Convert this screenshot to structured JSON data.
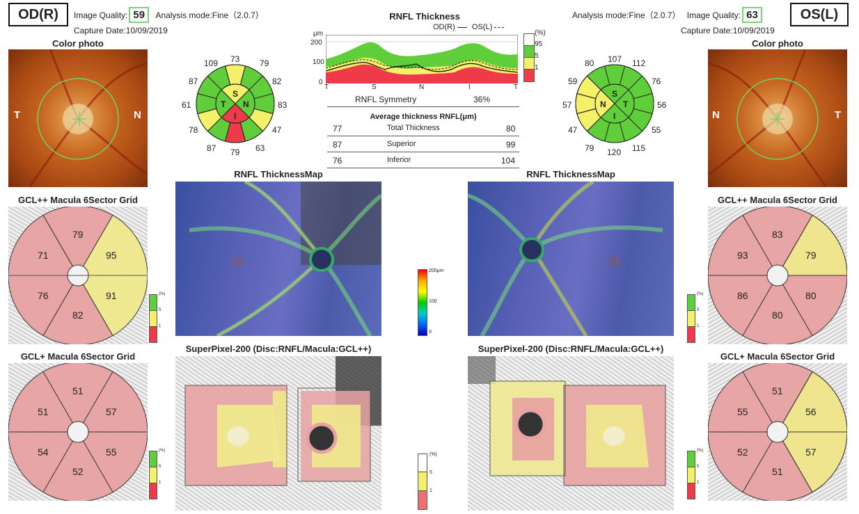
{
  "od": {
    "eye_label": "OD(R)",
    "quality_label": "Image Quality:",
    "quality": "59",
    "mode": "Analysis mode:Fine（2.0.7）",
    "capture": "Capture Date:10/09/2019",
    "photo_title": "Color photo",
    "photo_t": "T",
    "photo_n": "N",
    "clock": {
      "top_l": "109",
      "top": "73",
      "top_r": "79",
      "ul": "87",
      "ur": "82",
      "l": "61",
      "r": "83",
      "ll": "78",
      "lr": "47",
      "bot_l": "87",
      "bot": "79",
      "bot_r": "63",
      "S": "S",
      "T": "T",
      "N": "N",
      "I": "I"
    },
    "gclpp_title": "GCL++ Macula 6Sector Grid",
    "gclpp": [
      "79",
      "95",
      "91",
      "82",
      "76",
      "71"
    ],
    "gclp_title": "GCL+ Macula 6Sector Grid",
    "gclp": [
      "51",
      "57",
      "55",
      "52",
      "54",
      "51"
    ],
    "map_title": "RNFL ThicknessMap",
    "spx_title": "SuperPixel-200 (Disc:RNFL/Macula:GCL++)"
  },
  "os": {
    "eye_label": "OS(L)",
    "quality_label": "Image Quality:",
    "quality": "63",
    "mode": "Analysis mode:Fine（2.0.7）",
    "capture": "Capture Date:10/09/2019",
    "photo_title": "Color photo",
    "photo_n": "N",
    "photo_t": "T",
    "clock": {
      "top_l": "80",
      "top": "107",
      "top_r": "112",
      "ul": "59",
      "ur": "76",
      "l": "57",
      "r": "56",
      "ll": "47",
      "lr": "55",
      "bot_l": "79",
      "bot": "120",
      "bot_r": "115",
      "S": "S",
      "T": "T",
      "N": "N",
      "I": "I"
    },
    "gclpp_title": "GCL++ Macula 6Sector Grid",
    "gclpp": [
      "83",
      "79",
      "80",
      "80",
      "86",
      "93"
    ],
    "gclp_title": "GCL+ Macula 6Sector Grid",
    "gclp": [
      "51",
      "56",
      "57",
      "51",
      "52",
      "55"
    ],
    "map_title": "RNFL ThicknessMap",
    "spx_title": "SuperPixel-200 (Disc:RNFL/Macula:GCL++)"
  },
  "center": {
    "title": "RNFL Thickness",
    "legend_od": "OD(R)",
    "legend_os": "OS(L)",
    "unit": "μm",
    "yticks": [
      "200",
      "100",
      "0"
    ],
    "xticks": [
      "T",
      "S",
      "N",
      "I",
      "T"
    ],
    "pct_label": "(%)",
    "pct_ticks": [
      "95",
      "5",
      "1"
    ],
    "symmetry_label": "RNFL Symmetry",
    "symmetry_value": "36%",
    "avg_title": "Average thickness RNFL(μm)",
    "rows": [
      {
        "od": "77",
        "label": "Total Thickness",
        "os": "80"
      },
      {
        "od": "87",
        "label": "Superior",
        "os": "99"
      },
      {
        "od": "76",
        "label": "Inferior",
        "os": "104"
      }
    ],
    "colorbar_top": "200μm",
    "colorbar_mid": "100",
    "colorbar_bot": "0",
    "spx_legend": [
      "(%)",
      "5",
      "1"
    ],
    "grid_legend": [
      "(%)",
      "5",
      "1"
    ]
  },
  "colors": {
    "green": "#5fce3a",
    "yellow": "#f4f06a",
    "red": "#ef3a4a",
    "pink": "#e8a2a2",
    "paleyellow": "#efe98d"
  }
}
